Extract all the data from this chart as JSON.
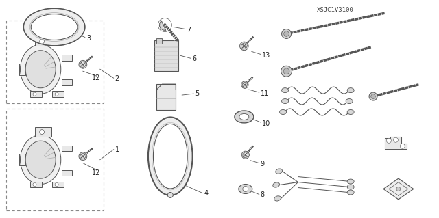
{
  "diagram_code": "XSJC1V3100",
  "background_color": "#ffffff",
  "line_color": "#555555",
  "text_color": "#222222",
  "fig_width": 6.4,
  "fig_height": 3.19,
  "dpi": 100
}
